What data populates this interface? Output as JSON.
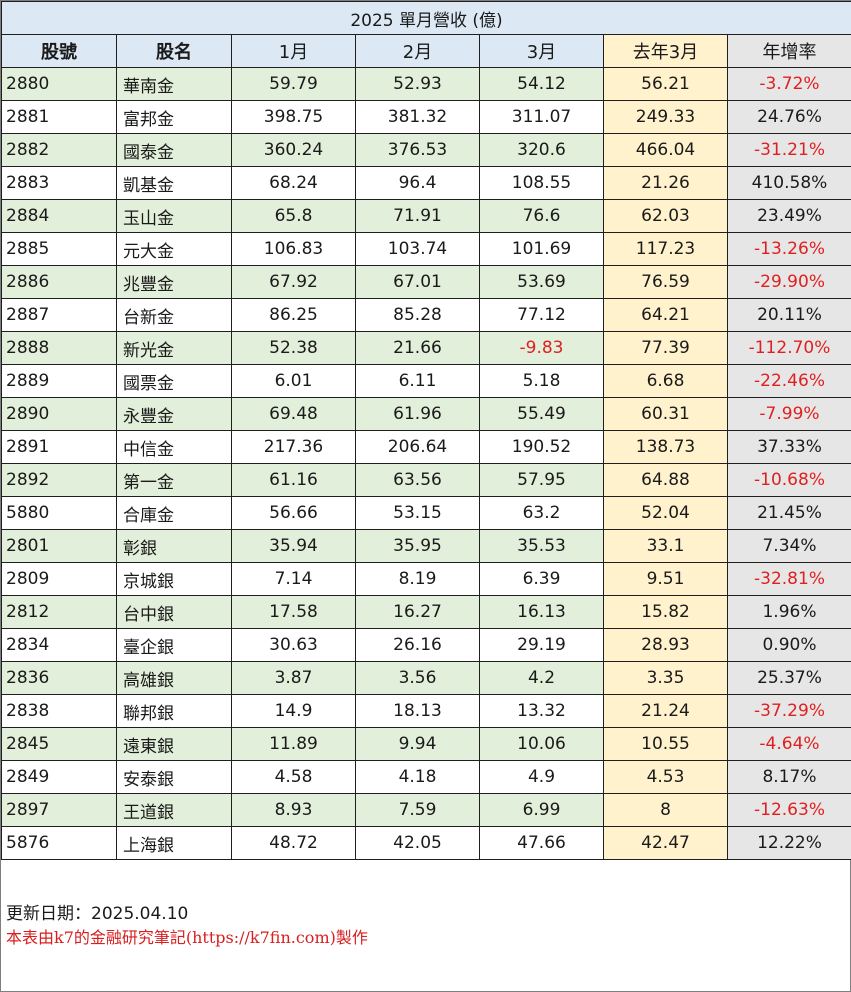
{
  "title": "2025 單月營收 (億)",
  "headers": {
    "code": "股號",
    "name": "股名",
    "m1": "1月",
    "m2": "2月",
    "m3": "3月",
    "prev": "去年3月",
    "yoy": "年增率"
  },
  "rows": [
    {
      "code": "2880",
      "name": "華南金",
      "m1": "59.79",
      "m2": "52.93",
      "m3": "54.12",
      "prev": "56.21",
      "yoy": "-3.72%"
    },
    {
      "code": "2881",
      "name": "富邦金",
      "m1": "398.75",
      "m2": "381.32",
      "m3": "311.07",
      "prev": "249.33",
      "yoy": "24.76%"
    },
    {
      "code": "2882",
      "name": "國泰金",
      "m1": "360.24",
      "m2": "376.53",
      "m3": "320.6",
      "prev": "466.04",
      "yoy": "-31.21%"
    },
    {
      "code": "2883",
      "name": "凱基金",
      "m1": "68.24",
      "m2": "96.4",
      "m3": "108.55",
      "prev": "21.26",
      "yoy": "410.58%"
    },
    {
      "code": "2884",
      "name": "玉山金",
      "m1": "65.8",
      "m2": "71.91",
      "m3": "76.6",
      "prev": "62.03",
      "yoy": "23.49%"
    },
    {
      "code": "2885",
      "name": "元大金",
      "m1": "106.83",
      "m2": "103.74",
      "m3": "101.69",
      "prev": "117.23",
      "yoy": "-13.26%"
    },
    {
      "code": "2886",
      "name": "兆豐金",
      "m1": "67.92",
      "m2": "67.01",
      "m3": "53.69",
      "prev": "76.59",
      "yoy": "-29.90%"
    },
    {
      "code": "2887",
      "name": "台新金",
      "m1": "86.25",
      "m2": "85.28",
      "m3": "77.12",
      "prev": "64.21",
      "yoy": "20.11%"
    },
    {
      "code": "2888",
      "name": "新光金",
      "m1": "52.38",
      "m2": "21.66",
      "m3": "-9.83",
      "prev": "77.39",
      "yoy": "-112.70%"
    },
    {
      "code": "2889",
      "name": "國票金",
      "m1": "6.01",
      "m2": "6.11",
      "m3": "5.18",
      "prev": "6.68",
      "yoy": "-22.46%"
    },
    {
      "code": "2890",
      "name": "永豐金",
      "m1": "69.48",
      "m2": "61.96",
      "m3": "55.49",
      "prev": "60.31",
      "yoy": "-7.99%"
    },
    {
      "code": "2891",
      "name": "中信金",
      "m1": "217.36",
      "m2": "206.64",
      "m3": "190.52",
      "prev": "138.73",
      "yoy": "37.33%"
    },
    {
      "code": "2892",
      "name": "第一金",
      "m1": "61.16",
      "m2": "63.56",
      "m3": "57.95",
      "prev": "64.88",
      "yoy": "-10.68%"
    },
    {
      "code": "5880",
      "name": "合庫金",
      "m1": "56.66",
      "m2": "53.15",
      "m3": "63.2",
      "prev": "52.04",
      "yoy": "21.45%"
    },
    {
      "code": "2801",
      "name": "彰銀",
      "m1": "35.94",
      "m2": "35.95",
      "m3": "35.53",
      "prev": "33.1",
      "yoy": "7.34%"
    },
    {
      "code": "2809",
      "name": "京城銀",
      "m1": "7.14",
      "m2": "8.19",
      "m3": "6.39",
      "prev": "9.51",
      "yoy": "-32.81%"
    },
    {
      "code": "2812",
      "name": "台中銀",
      "m1": "17.58",
      "m2": "16.27",
      "m3": "16.13",
      "prev": "15.82",
      "yoy": "1.96%"
    },
    {
      "code": "2834",
      "name": "臺企銀",
      "m1": "30.63",
      "m2": "26.16",
      "m3": "29.19",
      "prev": "28.93",
      "yoy": "0.90%"
    },
    {
      "code": "2836",
      "name": "高雄銀",
      "m1": "3.87",
      "m2": "3.56",
      "m3": "4.2",
      "prev": "3.35",
      "yoy": "25.37%"
    },
    {
      "code": "2838",
      "name": "聯邦銀",
      "m1": "14.9",
      "m2": "18.13",
      "m3": "13.32",
      "prev": "21.24",
      "yoy": "-37.29%"
    },
    {
      "code": "2845",
      "name": "遠東銀",
      "m1": "11.89",
      "m2": "9.94",
      "m3": "10.06",
      "prev": "10.55",
      "yoy": "-4.64%"
    },
    {
      "code": "2849",
      "name": "安泰銀",
      "m1": "4.58",
      "m2": "4.18",
      "m3": "4.9",
      "prev": "4.53",
      "yoy": "8.17%"
    },
    {
      "code": "2897",
      "name": "王道銀",
      "m1": "8.93",
      "m2": "7.59",
      "m3": "6.99",
      "prev": "8",
      "yoy": "-12.63%"
    },
    {
      "code": "5876",
      "name": "上海銀",
      "m1": "48.72",
      "m2": "42.05",
      "m3": "47.66",
      "prev": "42.47",
      "yoy": "12.22%"
    }
  ],
  "footer": {
    "updated": "更新日期：2025.04.10",
    "credit": "本表由k7的金融研究筆記(https://k7fin.com)製作"
  },
  "colors": {
    "header_bg": "#dce9f5",
    "stripe_bg": "#e2efda",
    "prev_year_bg": "#fff2cc",
    "yoy_bg": "#e7e6e6",
    "negative": "#e02020",
    "credit_text": "#d81e1e"
  }
}
